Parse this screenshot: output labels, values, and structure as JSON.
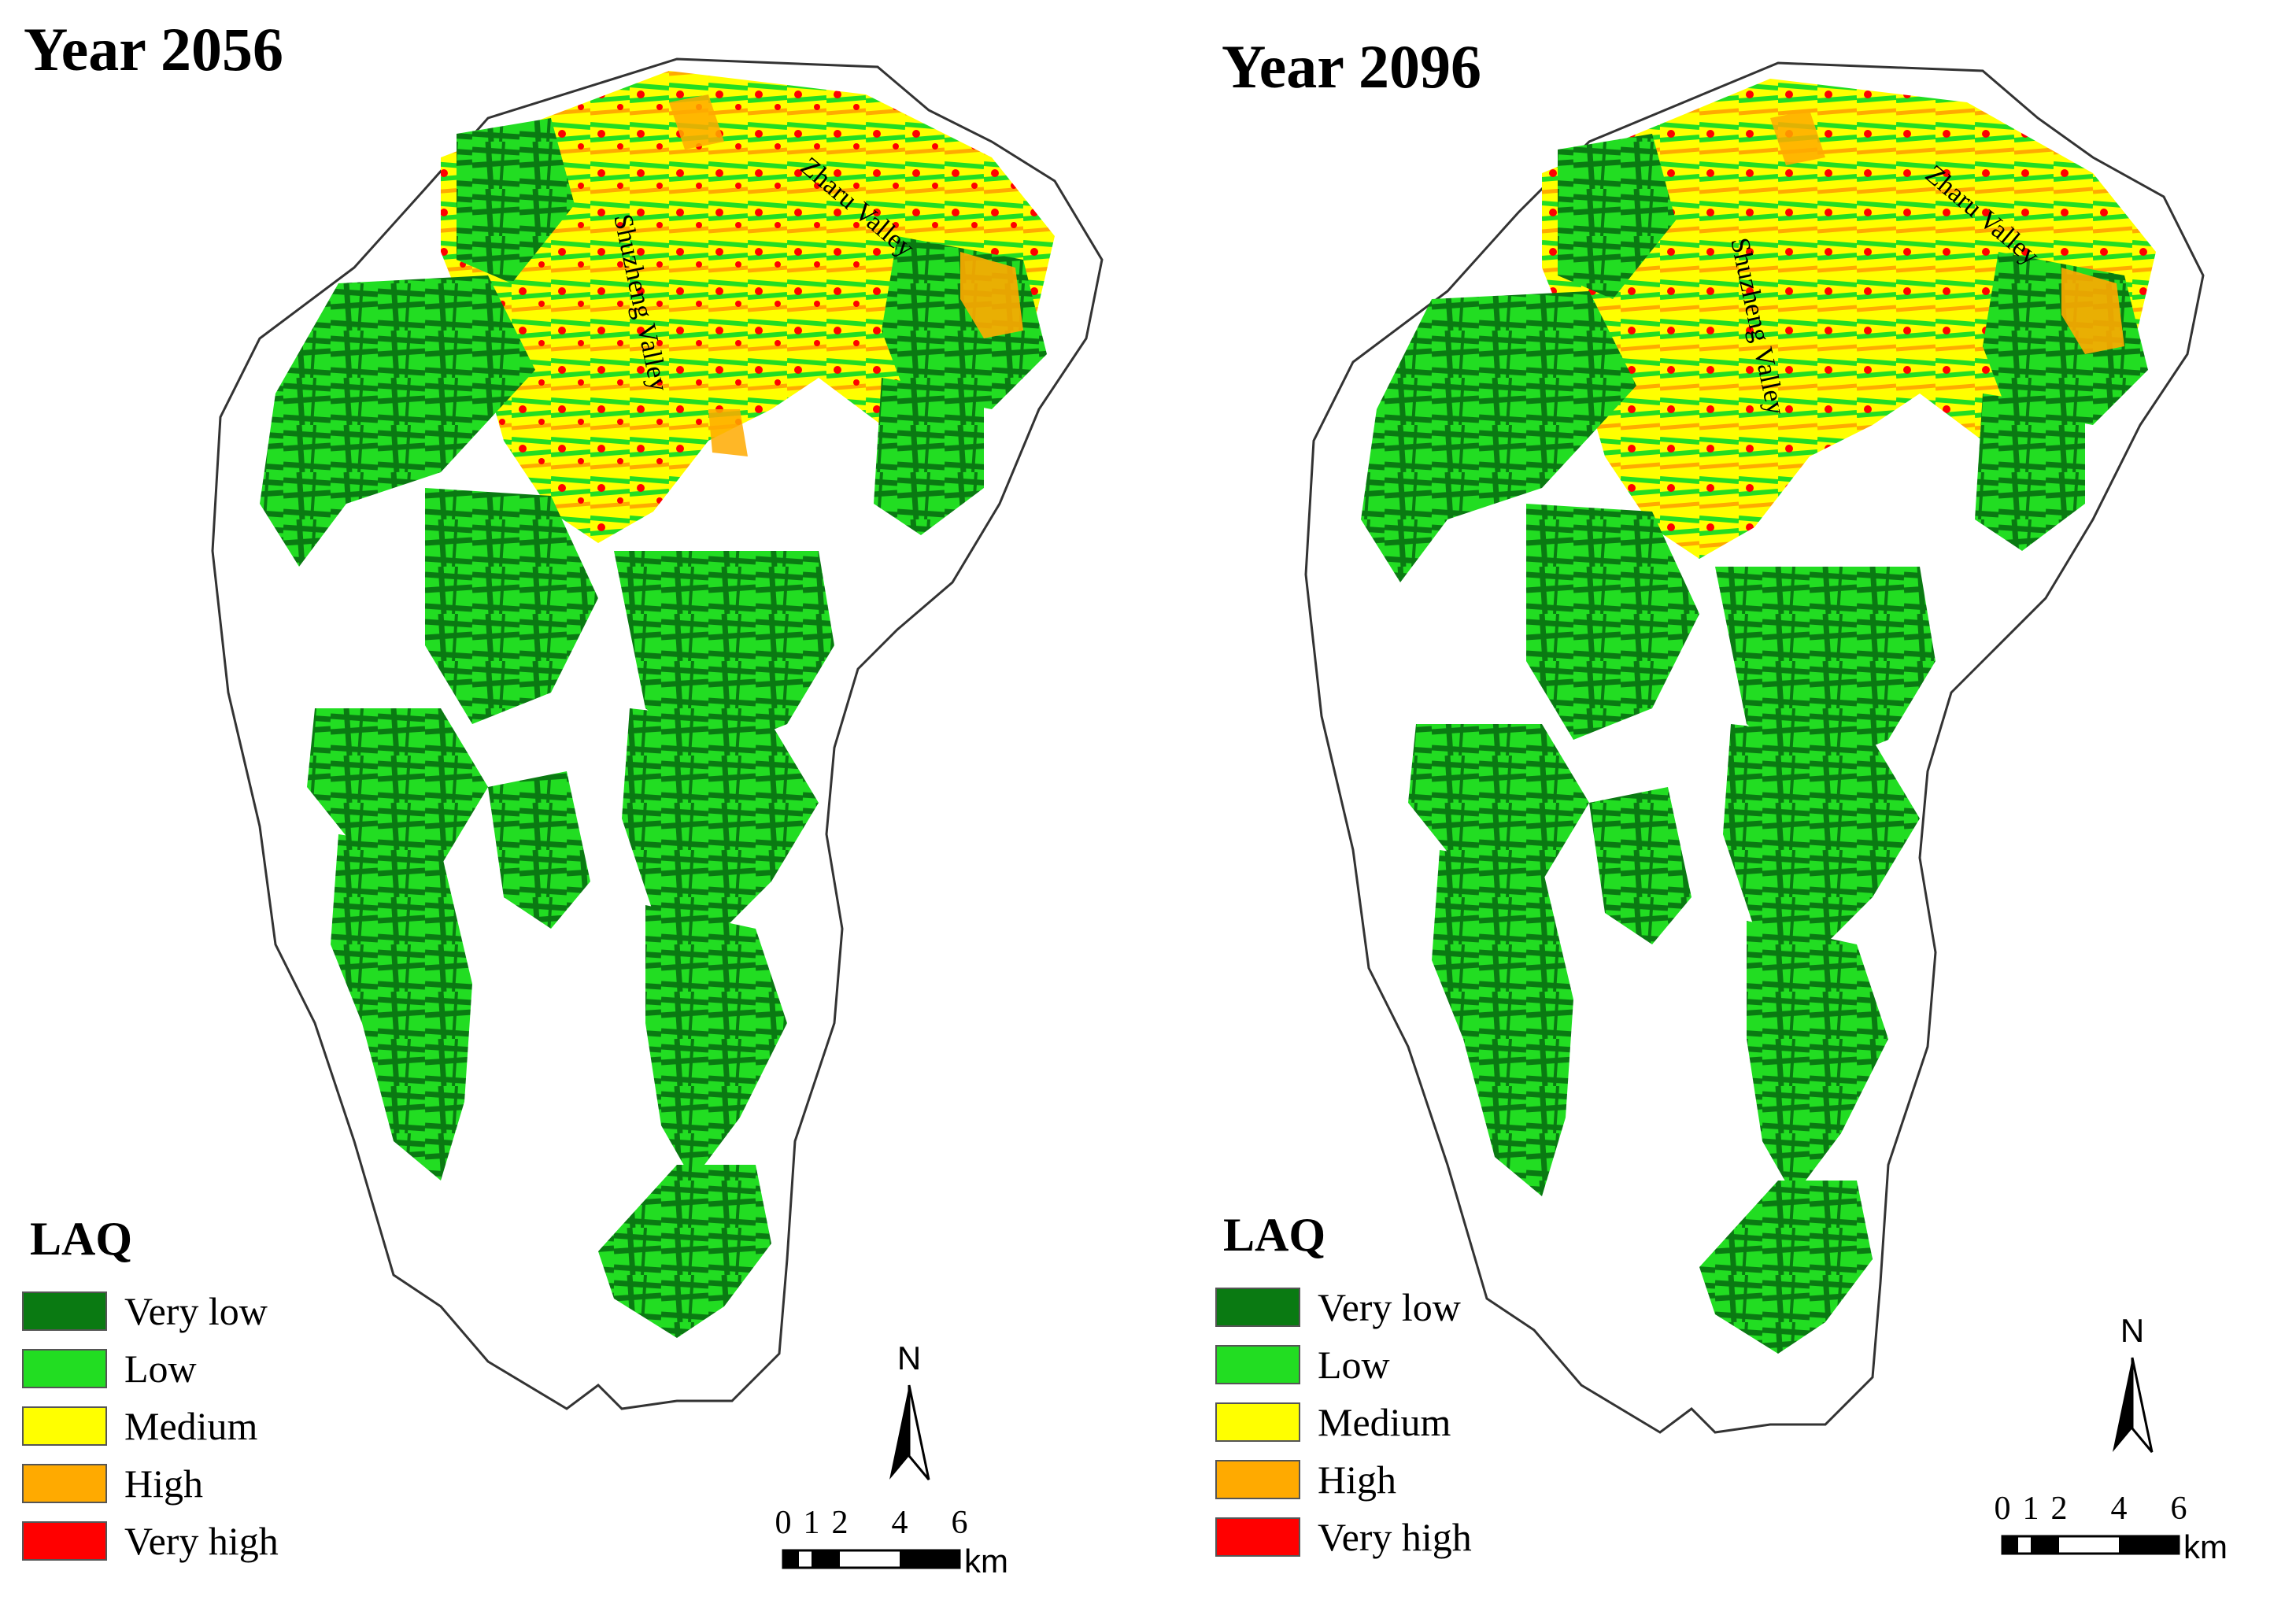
{
  "legend": {
    "title": "LAQ",
    "classes": [
      {
        "label": "Very low",
        "color": "#0a7a12"
      },
      {
        "label": "Low",
        "color": "#22dd22"
      },
      {
        "label": "Medium",
        "color": "#ffff00"
      },
      {
        "label": "High",
        "color": "#ffaa00"
      },
      {
        "label": "Very high",
        "color": "#ff0000"
      }
    ]
  },
  "north_arrow": {
    "label": "N",
    "icon": "north-arrow-icon"
  },
  "scale_bar": {
    "ticks": [
      "0",
      "1",
      "2",
      "4",
      "6"
    ],
    "unit": "km"
  },
  "panels": [
    {
      "title": "Year 2056",
      "valleys": [
        "Shuzheng Valley",
        "Zharu Valley"
      ]
    },
    {
      "title": "Year 2096",
      "valleys": [
        "Shuzheng Valley",
        "Zharu Valley"
      ]
    }
  ]
}
